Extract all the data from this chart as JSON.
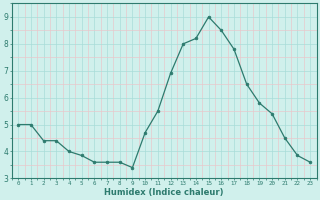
{
  "x": [
    0,
    1,
    2,
    3,
    4,
    5,
    6,
    7,
    8,
    9,
    10,
    11,
    12,
    13,
    14,
    15,
    16,
    17,
    18,
    19,
    20,
    21,
    22,
    23
  ],
  "y": [
    5.0,
    5.0,
    4.4,
    4.4,
    4.0,
    3.85,
    3.6,
    3.6,
    3.6,
    3.4,
    4.7,
    5.5,
    6.9,
    8.0,
    8.2,
    9.0,
    8.5,
    7.8,
    6.5,
    5.8,
    5.4,
    4.5,
    3.85,
    3.6
  ],
  "xlabel": "Humidex (Indice chaleur)",
  "ylim": [
    3.0,
    9.3
  ],
  "yticks": [
    3,
    4,
    5,
    6,
    7,
    8,
    9
  ],
  "xticks": [
    0,
    1,
    2,
    3,
    4,
    5,
    6,
    7,
    8,
    9,
    10,
    11,
    12,
    13,
    14,
    15,
    16,
    17,
    18,
    19,
    20,
    21,
    22,
    23
  ],
  "line_color": "#2d7b6e",
  "marker_color": "#2d7b6e",
  "bg_plot": "#d0f0ec",
  "bg_fig": "#d0f0ec",
  "grid_color_major": "#a8ddd8",
  "grid_color_minor": "#e8c8cc"
}
